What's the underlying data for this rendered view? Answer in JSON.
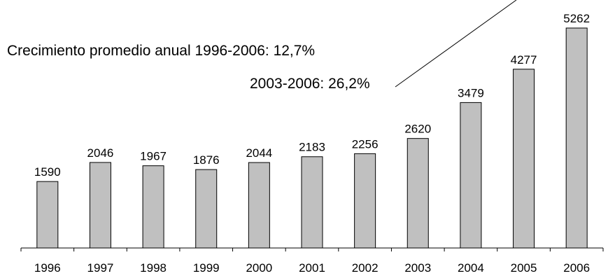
{
  "chart_data": {
    "type": "bar",
    "categories": [
      "1996",
      "1997",
      "1998",
      "1999",
      "2000",
      "2001",
      "2002",
      "2003",
      "2004",
      "2005",
      "2006"
    ],
    "values": [
      1590,
      2046,
      1967,
      1876,
      2044,
      2183,
      2256,
      2620,
      3479,
      4277,
      5262
    ],
    "data_labels": [
      "1590",
      "2046",
      "1967",
      "1876",
      "2044",
      "2183",
      "2256",
      "2620",
      "3479",
      "4277",
      "5262"
    ],
    "ylim": [
      0,
      5262
    ],
    "grid": false,
    "legend": "none",
    "annotations": [
      "Crecimiento promedio anual 1996-2006: 12,7%",
      "2003-2006: 26,2%"
    ],
    "colors": {
      "bar": "#c0c0c0",
      "bar_stroke": "#000000"
    }
  }
}
